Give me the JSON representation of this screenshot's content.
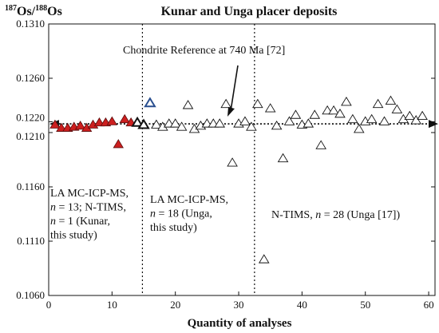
{
  "chart_data": {
    "type": "scatter",
    "title": "Kunar and Unga placer deposits",
    "ylabel_parts": {
      "sup1": "187",
      "base1": "Os/",
      "sup2": "188",
      "base2": "Os"
    },
    "xlabel": "Quantity of analyses",
    "xlim": [
      0,
      61
    ],
    "ylim": [
      0.106,
      0.131
    ],
    "x_ticks": [
      0,
      10,
      20,
      30,
      40,
      50,
      60
    ],
    "y_ticks": [
      "0.1310",
      "0.1260",
      "0.1220",
      "0.1210",
      "0.1160",
      "0.1110",
      "0.1060"
    ],
    "reference_line": {
      "label": "Chondrite Reference at 740 Ma [72]",
      "y": 0.1218,
      "x_start": 0.5,
      "x_end": 61
    },
    "dividers": [
      14.8,
      32.5
    ],
    "regions": [
      {
        "lines": [
          "LA MC-ICP-MS,",
          "n = 13; N-TIMS,",
          "n = 1 (Kunar,",
          "this study)"
        ]
      },
      {
        "lines": [
          "LA MC-ICP-MS,",
          "n = 18 (Unga,",
          "this study)"
        ]
      },
      {
        "lines": [
          "N-TIMS, n = 28 (Unga [17])"
        ]
      }
    ],
    "series": [
      {
        "marker": "filled-red-triangle",
        "color": "#cc1f1f",
        "points": [
          [
            1,
            0.1217
          ],
          [
            2,
            0.1214
          ],
          [
            3,
            0.1214
          ],
          [
            4,
            0.1215
          ],
          [
            5,
            0.1216
          ],
          [
            6,
            0.1214
          ],
          [
            7,
            0.1217
          ],
          [
            8,
            0.1219
          ],
          [
            9,
            0.1219
          ],
          [
            10,
            0.122
          ],
          [
            11,
            0.1199
          ],
          [
            12,
            0.1222
          ],
          [
            13,
            0.1219
          ]
        ]
      },
      {
        "marker": "open-triangle-bold",
        "color": "#111111",
        "points": [
          [
            14,
            0.1219
          ],
          [
            15,
            0.1217
          ]
        ]
      },
      {
        "marker": "open-blue-triangle",
        "color": "#2a4f8f",
        "points": [
          [
            16,
            0.1237
          ]
        ]
      },
      {
        "marker": "open-triangle",
        "color": "#111111",
        "points": [
          [
            17,
            0.1217
          ],
          [
            18,
            0.1215
          ],
          [
            19,
            0.1218
          ],
          [
            20,
            0.1218
          ],
          [
            21,
            0.1215
          ],
          [
            22,
            0.1235
          ],
          [
            23,
            0.1213
          ],
          [
            24,
            0.1216
          ],
          [
            25,
            0.1218
          ],
          [
            26,
            0.1218
          ],
          [
            27,
            0.1218
          ],
          [
            28,
            0.1236
          ],
          [
            29,
            0.1182
          ],
          [
            30,
            0.1218
          ],
          [
            31,
            0.122
          ],
          [
            32,
            0.1215
          ],
          [
            33,
            0.1236
          ],
          [
            34,
            0.1093
          ],
          [
            35,
            0.1232
          ],
          [
            36,
            0.1216
          ],
          [
            37,
            0.1186
          ],
          [
            38,
            0.122
          ],
          [
            39,
            0.1226
          ],
          [
            40,
            0.1217
          ],
          [
            41,
            0.1218
          ],
          [
            42,
            0.1226
          ],
          [
            43,
            0.1198
          ],
          [
            44,
            0.123
          ],
          [
            45,
            0.123
          ],
          [
            46,
            0.1227
          ],
          [
            47,
            0.1238
          ],
          [
            48,
            0.1222
          ],
          [
            49,
            0.1213
          ],
          [
            50,
            0.122
          ],
          [
            51,
            0.1222
          ],
          [
            52,
            0.1236
          ],
          [
            53,
            0.122
          ],
          [
            54,
            0.1239
          ],
          [
            55,
            0.1231
          ],
          [
            56,
            0.1222
          ],
          [
            57,
            0.1225
          ],
          [
            58,
            0.1221
          ],
          [
            59,
            0.1225
          ]
        ]
      }
    ]
  }
}
